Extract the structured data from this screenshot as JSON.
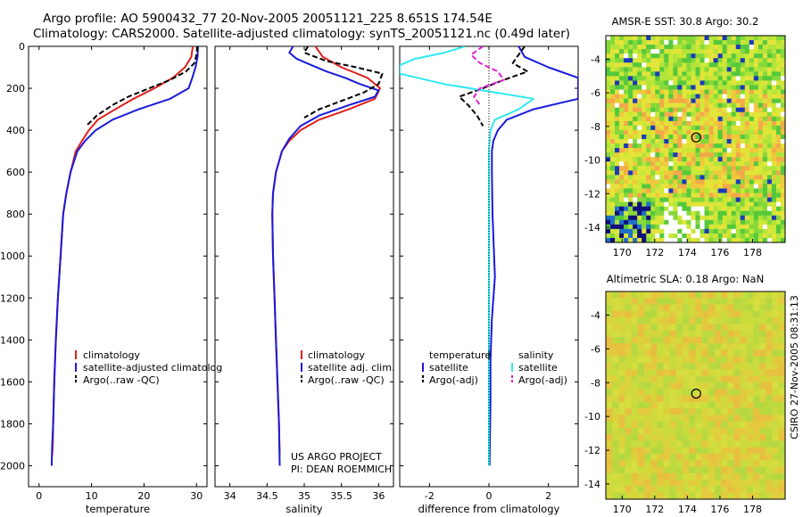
{
  "title_line1": "Argo profile: AO 5900432_77 20-Nov-2005 20051121_225 8.651S 174.54E",
  "title_line2": "Climatology: CARS2000. Satellite-adjusted climatology: synTS_20051121.nc (0.49d later)",
  "side_stamp": "CSIRO 27-Nov-2005 08:31:13",
  "colors": {
    "climatology": "#e0201c",
    "satellite": "#1a1adc",
    "argo": "#000000",
    "sal_satellite": "#30e8f0",
    "sal_argo": "#e020d0"
  },
  "chart_data": [
    {
      "type": "line",
      "name": "temperature-panel",
      "xlabel": "temperature",
      "ylabel": "",
      "xlim": [
        -2,
        32
      ],
      "ylim": [
        2100,
        0
      ],
      "xticks": [
        0,
        10,
        20,
        30
      ],
      "xtick_labels": [
        "0",
        "10",
        "20",
        "30"
      ],
      "yticks": [
        0,
        200,
        400,
        600,
        800,
        1000,
        1200,
        1400,
        1600,
        1800,
        2000
      ],
      "ytick_labels": [
        "0",
        "200",
        "400",
        "600",
        "800",
        "1000",
        "1200",
        "1400",
        "1600",
        "1800",
        "2000"
      ],
      "legend": [
        "climatology",
        "satellite-adjusted climatolog",
        "Argo(..raw -QC)"
      ],
      "series": [
        {
          "name": "climatology",
          "color": "#e0201c",
          "dash": "",
          "x": [
            29.3,
            29.0,
            27.8,
            25.5,
            22.0,
            18.0,
            14.5,
            11.2,
            9.5,
            8.2,
            7.0,
            6.0,
            5.2,
            4.6,
            4.1,
            3.6,
            3.2,
            2.9,
            2.7,
            2.6,
            2.5
          ],
          "y": [
            0,
            50,
            100,
            150,
            200,
            250,
            300,
            350,
            400,
            450,
            500,
            600,
            700,
            800,
            1000,
            1200,
            1400,
            1600,
            1800,
            1900,
            1950
          ]
        },
        {
          "name": "satellite-adjusted climatolog",
          "color": "#1a1adc",
          "dash": "",
          "x": [
            30.3,
            30.2,
            29.8,
            29.2,
            28.5,
            25.0,
            19.0,
            14.0,
            10.8,
            8.8,
            7.3,
            6.0,
            5.2,
            4.6,
            4.1,
            3.6,
            3.2,
            2.9,
            2.7,
            2.5,
            2.4
          ],
          "y": [
            0,
            50,
            100,
            150,
            200,
            250,
            300,
            350,
            400,
            450,
            500,
            600,
            700,
            800,
            1000,
            1200,
            1400,
            1600,
            1800,
            1900,
            2000
          ]
        },
        {
          "name": "Argo(..raw -QC)",
          "color": "#000000",
          "dash": "6,3",
          "x": [
            30.2,
            30.0,
            29.6,
            28.0,
            25.0,
            21.0,
            17.0,
            14.0,
            11.0,
            9.0
          ],
          "y": [
            0,
            40,
            80,
            120,
            160,
            200,
            240,
            280,
            330,
            380
          ]
        }
      ]
    },
    {
      "type": "line",
      "name": "salinity-panel",
      "xlabel": "salinity",
      "ylabel": "",
      "xlim": [
        33.8,
        36.2
      ],
      "ylim": [
        2100,
        0
      ],
      "xticks": [
        34,
        34.5,
        35,
        35.5,
        36
      ],
      "xtick_labels": [
        "34",
        "34.5",
        "35",
        "35.5",
        "36"
      ],
      "legend": [
        "climatology",
        "satellite adj. clim.",
        "Argo(..raw -QC)"
      ],
      "annotations": [
        "US ARGO PROJECT",
        "PI: DEAN ROEMMICH"
      ],
      "series": [
        {
          "name": "climatology",
          "color": "#e0201c",
          "dash": "",
          "x": [
            35.15,
            35.25,
            35.5,
            35.85,
            36.02,
            35.95,
            35.6,
            35.2,
            34.95,
            34.8,
            34.7,
            34.62,
            34.58,
            34.57,
            34.58,
            34.6,
            34.62,
            34.64,
            34.66,
            34.67
          ],
          "y": [
            0,
            50,
            100,
            150,
            200,
            250,
            300,
            350,
            400,
            450,
            500,
            600,
            700,
            800,
            1000,
            1200,
            1400,
            1600,
            1800,
            1950
          ]
        },
        {
          "name": "satellite adj. clim.",
          "color": "#1a1adc",
          "dash": "",
          "x": [
            34.85,
            34.8,
            34.9,
            35.1,
            35.3,
            35.55,
            35.75,
            36.0,
            35.95,
            35.6,
            35.2,
            34.95,
            34.8,
            34.7,
            34.62,
            34.58,
            34.57,
            34.58,
            34.6,
            34.62,
            34.64,
            34.66,
            34.67
          ],
          "y": [
            0,
            30,
            60,
            90,
            120,
            150,
            180,
            210,
            240,
            280,
            330,
            380,
            440,
            500,
            600,
            700,
            800,
            1000,
            1200,
            1400,
            1600,
            1800,
            2000
          ]
        },
        {
          "name": "Argo(..raw -QC)",
          "color": "#000000",
          "dash": "6,3",
          "x": [
            35.05,
            35.0,
            35.3,
            35.7,
            36.05,
            36.0,
            35.8,
            35.5,
            35.2,
            35.0
          ],
          "y": [
            0,
            30,
            70,
            100,
            130,
            180,
            220,
            260,
            300,
            340
          ]
        }
      ]
    },
    {
      "type": "line",
      "name": "difference-panel",
      "xlabel": "difference from climatology",
      "ylabel": "",
      "xlim": [
        -3,
        3
      ],
      "ylim": [
        2100,
        0
      ],
      "xticks": [
        -2,
        0,
        2
      ],
      "xtick_labels": [
        "-2",
        "0",
        "2"
      ],
      "legend_headers": [
        "temperature",
        "salinity"
      ],
      "legend": [
        "satellite",
        "Argo(-adj)",
        "satellite",
        "Argo(-adj)"
      ],
      "series": [
        {
          "name": "temperature satellite",
          "color": "#1a1adc",
          "dash": "",
          "x": [
            1.0,
            1.2,
            2.0,
            3.0,
            3.0,
            3.0,
            1.5,
            0.6,
            0.3,
            0.15,
            0.1,
            0.1,
            0.12,
            0.2,
            0.15,
            0.1,
            0.05,
            0.05,
            0.03,
            0.02
          ],
          "y": [
            0,
            50,
            100,
            150,
            200,
            250,
            300,
            350,
            400,
            450,
            500,
            600,
            800,
            1100,
            1200,
            1300,
            1500,
            1700,
            1900,
            2000
          ]
        },
        {
          "name": "temperature Argo(-adj)",
          "color": "#000000",
          "dash": "6,3",
          "x": [
            1.2,
            1.0,
            0.8,
            1.3,
            0.5,
            -0.2,
            -1.0,
            -0.7,
            -0.4,
            -0.2
          ],
          "y": [
            0,
            40,
            80,
            120,
            160,
            200,
            240,
            280,
            330,
            380
          ]
        },
        {
          "name": "salinity satellite",
          "color": "#30e8f0",
          "dash": "",
          "x": [
            -0.8,
            -1.5,
            -2.5,
            -3.0,
            -3.0,
            -1.5,
            1.5,
            1.0,
            0.2,
            0.05,
            0.0,
            0.0,
            0.0,
            0.0,
            0.0,
            0.0
          ],
          "y": [
            0,
            30,
            60,
            90,
            130,
            180,
            250,
            300,
            350,
            400,
            500,
            800,
            1200,
            1500,
            1800,
            2000
          ]
        },
        {
          "name": "salinity Argo(-adj)",
          "color": "#e020d0",
          "dash": "6,3",
          "x": [
            -0.2,
            -0.6,
            -0.3,
            0.3,
            0.5,
            -0.3,
            -0.5,
            -0.3
          ],
          "y": [
            0,
            40,
            80,
            120,
            160,
            200,
            240,
            280
          ]
        },
        {
          "name": "zero line",
          "color": "#000000",
          "dash": "1,2",
          "x": [
            0,
            0
          ],
          "y": [
            0,
            2000
          ]
        }
      ]
    },
    {
      "type": "heatmap",
      "name": "sst-map",
      "title": "AMSR-E SST: 30.8  Argo: 30.2",
      "xlim": [
        169,
        180
      ],
      "ylim": [
        -14.9,
        -2.6
      ],
      "xticks": [
        170,
        172,
        174,
        176,
        178
      ],
      "xtick_labels": [
        "170",
        "172",
        "174",
        "176",
        "178"
      ],
      "yticks": [
        -4,
        -6,
        -8,
        -10,
        -12,
        -14
      ],
      "ytick_labels": [
        "-4",
        "-6",
        "-8",
        "-10",
        "-12",
        "-14"
      ],
      "marker": {
        "x": 174.54,
        "y": -8.65
      }
    },
    {
      "type": "heatmap",
      "name": "sla-map",
      "title": "Altimetric SLA: 0.18  Argo: NaN",
      "xlim": [
        169,
        180
      ],
      "ylim": [
        -14.9,
        -2.6
      ],
      "xticks": [
        170,
        172,
        174,
        176,
        178
      ],
      "xtick_labels": [
        "170",
        "172",
        "174",
        "176",
        "178"
      ],
      "yticks": [
        -4,
        -6,
        -8,
        -10,
        -12,
        -14
      ],
      "ytick_labels": [
        "-4",
        "-6",
        "-8",
        "-10",
        "-12",
        "-14"
      ],
      "marker": {
        "x": 174.54,
        "y": -8.65
      }
    }
  ]
}
